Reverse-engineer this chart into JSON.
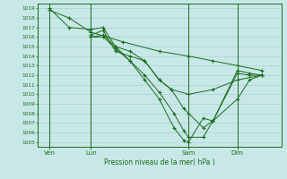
{
  "background_color": "#c8e8e8",
  "grid_color": "#a0cccc",
  "line_color": "#1a6b1a",
  "title": "Pression niveau de la mer( hPa )",
  "ylim": [
    1004.5,
    1019.5
  ],
  "yticks": [
    1005,
    1006,
    1007,
    1008,
    1009,
    1010,
    1011,
    1012,
    1013,
    1014,
    1015,
    1016,
    1017,
    1018,
    1019
  ],
  "xtick_labels": [
    "Ven",
    "Lun",
    "Sam",
    "Dim"
  ],
  "xtick_positions": [
    0.05,
    0.22,
    0.62,
    0.82
  ],
  "series": [
    {
      "x": [
        0.05,
        0.13,
        0.22,
        0.35,
        0.5,
        0.62,
        0.72,
        0.82,
        0.92
      ],
      "y": [
        1018.8,
        1018.0,
        1016.5,
        1015.5,
        1014.5,
        1014.0,
        1013.5,
        1013.0,
        1012.5
      ]
    },
    {
      "x": [
        0.05,
        0.13,
        0.22,
        0.27,
        0.32,
        0.38,
        0.44,
        0.5,
        0.55,
        0.62,
        0.72,
        0.82,
        0.92
      ],
      "y": [
        1019.0,
        1017.0,
        1016.8,
        1017.0,
        1015.0,
        1014.5,
        1013.5,
        1011.5,
        1010.5,
        1010.0,
        1010.5,
        1011.5,
        1012.0
      ]
    },
    {
      "x": [
        0.22,
        0.27,
        0.32,
        0.38,
        0.44,
        0.5,
        0.55,
        0.6,
        0.62,
        0.68,
        0.72,
        0.82,
        0.87,
        0.92
      ],
      "y": [
        1016.2,
        1016.7,
        1014.5,
        1014.0,
        1013.5,
        1011.5,
        1010.5,
        1008.5,
        1008.0,
        1006.5,
        1007.2,
        1009.5,
        1011.5,
        1012.0
      ]
    },
    {
      "x": [
        0.22,
        0.27,
        0.32,
        0.38,
        0.44,
        0.5,
        0.56,
        0.6,
        0.62,
        0.68,
        0.72,
        0.82,
        0.87,
        0.92
      ],
      "y": [
        1016.0,
        1016.0,
        1014.8,
        1013.5,
        1012.0,
        1010.2,
        1008.0,
        1006.2,
        1005.5,
        1005.5,
        1007.2,
        1012.2,
        1012.0,
        1012.0
      ]
    },
    {
      "x": [
        0.22,
        0.27,
        0.32,
        0.38,
        0.44,
        0.5,
        0.56,
        0.6,
        0.62,
        0.68,
        0.72,
        0.82,
        0.87,
        0.92
      ],
      "y": [
        1016.0,
        1016.2,
        1015.0,
        1013.5,
        1011.5,
        1009.5,
        1006.5,
        1005.2,
        1005.0,
        1007.5,
        1007.2,
        1012.5,
        1012.2,
        1012.0
      ]
    }
  ]
}
